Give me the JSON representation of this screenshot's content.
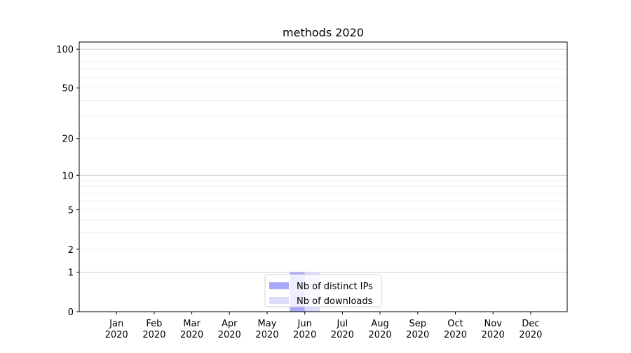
{
  "chart_data": {
    "type": "bar",
    "title": "methods 2020",
    "xlabel": "",
    "ylabel": "",
    "yscale": "log(y+1)",
    "ylim": [
      0,
      113.5
    ],
    "yticks": [
      0,
      1,
      2,
      5,
      10,
      20,
      50,
      100
    ],
    "ytick_labels": [
      "0",
      "1",
      "2",
      "5",
      "10",
      "20",
      "50",
      "100"
    ],
    "grid": true,
    "categories": [
      "Jan\n2020",
      "Feb\n2020",
      "Mar\n2020",
      "Apr\n2020",
      "May\n2020",
      "Jun\n2020",
      "Jul\n2020",
      "Aug\n2020",
      "Sep\n2020",
      "Oct\n2020",
      "Nov\n2020",
      "Dec\n2020"
    ],
    "series": [
      {
        "name": "Nb of distinct IPs",
        "color": "#a8a8f8",
        "values": [
          0,
          0,
          0,
          0,
          0,
          1,
          0,
          0,
          0,
          0,
          0,
          0
        ]
      },
      {
        "name": "Nb of downloads",
        "color": "#dcdcfa",
        "values": [
          0,
          0,
          0,
          0,
          0,
          1,
          0,
          0,
          0,
          0,
          0,
          0
        ]
      }
    ],
    "legend_position": "lower-center"
  }
}
